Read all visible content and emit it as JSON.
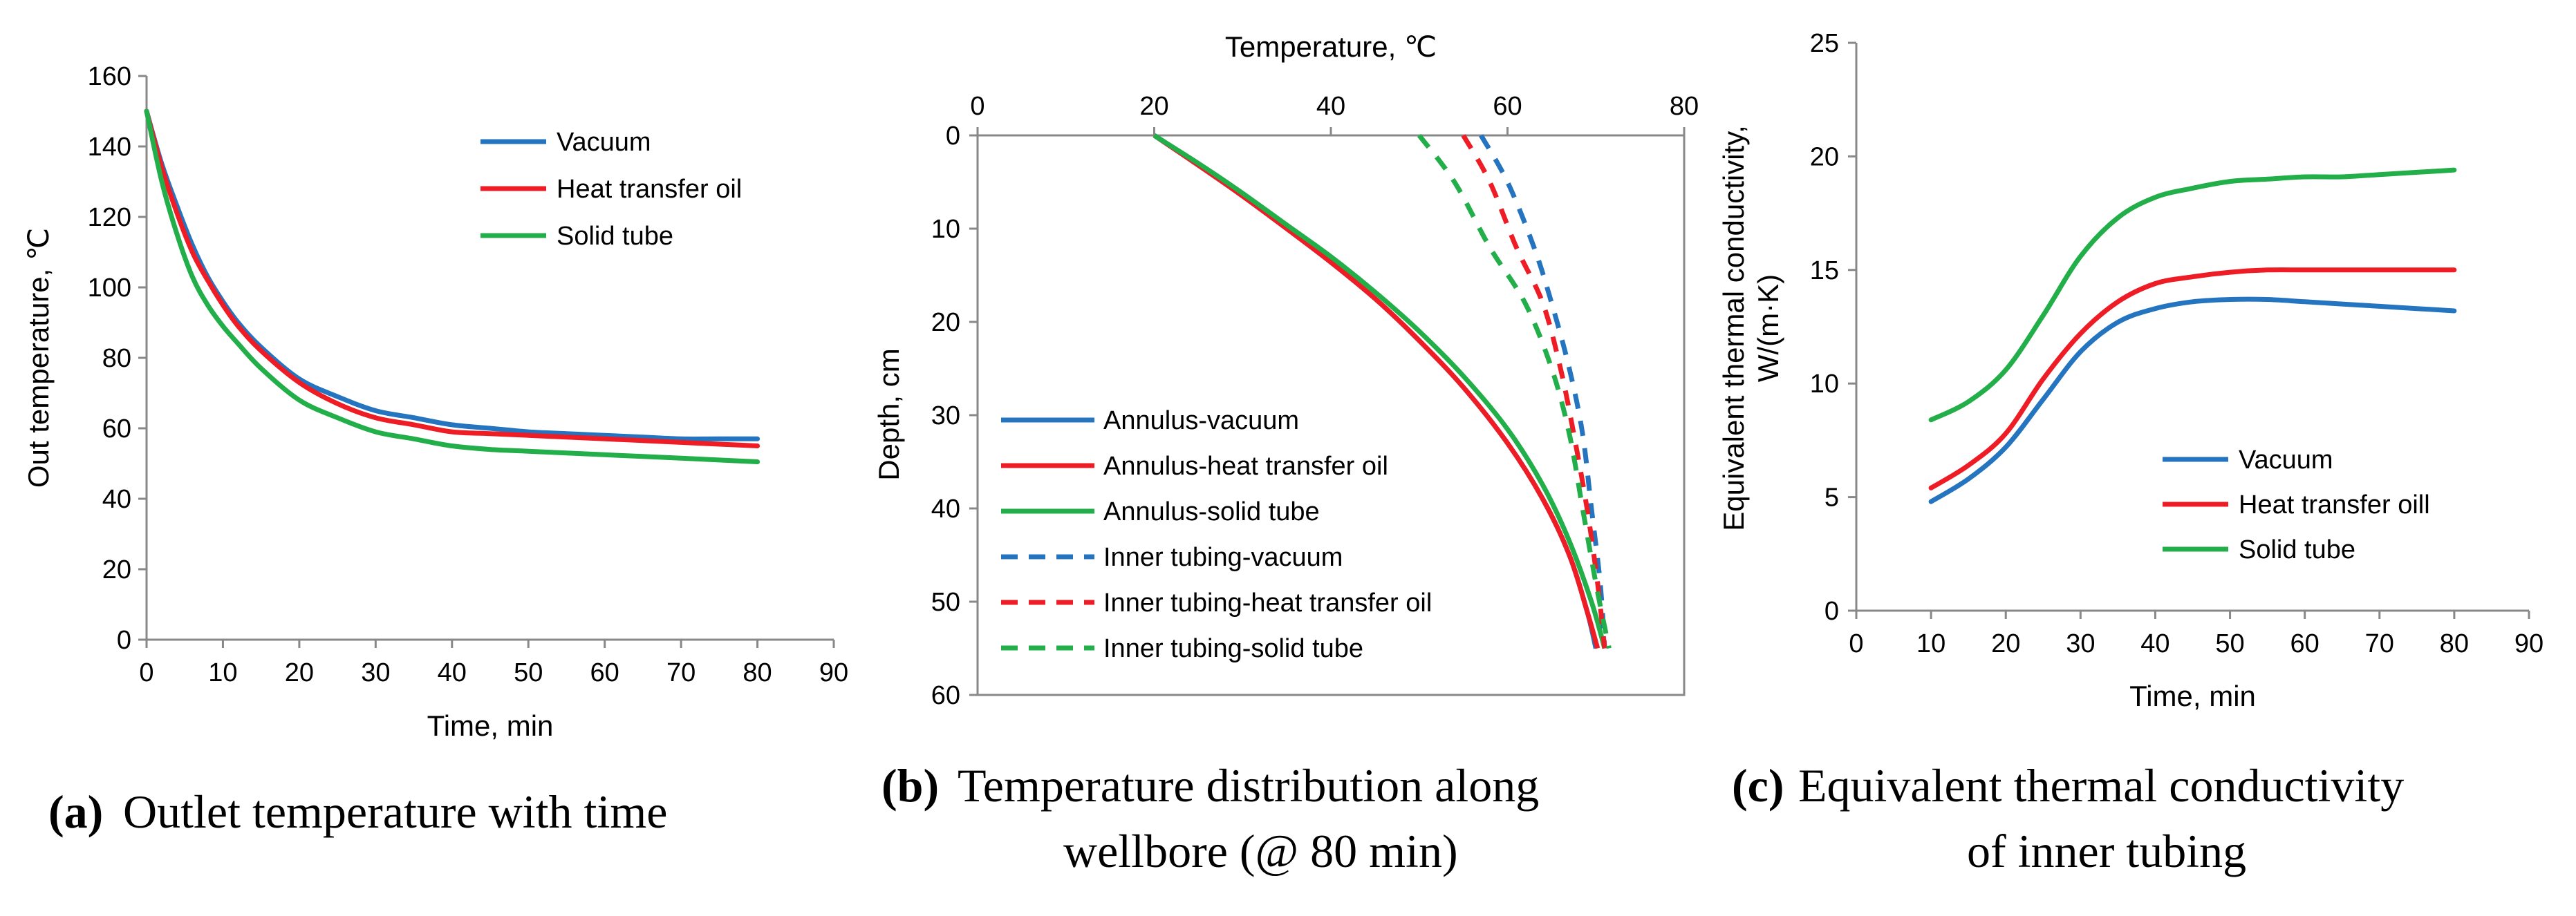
{
  "colors": {
    "vacuum": "#2474C0",
    "oil": "#EE1C25",
    "solid": "#22AE49"
  },
  "chart_data": [
    {
      "id": "a",
      "type": "line",
      "caption_letter": "a",
      "caption_text": "Outlet temperature with time",
      "title": "",
      "xlabel": "Time,  min",
      "ylabel": "Out temperature,  ℃",
      "xlim": [
        0,
        90
      ],
      "ylim": [
        0,
        160
      ],
      "xticks": [
        0,
        10,
        20,
        30,
        40,
        50,
        60,
        70,
        80,
        90
      ],
      "yticks": [
        0,
        20,
        40,
        60,
        80,
        100,
        120,
        140,
        160
      ],
      "grid": false,
      "legend_position": "top-right",
      "series": [
        {
          "name": "Vacuum",
          "color_key": "vacuum",
          "dash": false,
          "x": [
            0,
            2,
            4,
            6,
            8,
            10,
            12,
            15,
            20,
            25,
            30,
            35,
            40,
            45,
            50,
            55,
            60,
            65,
            70,
            75,
            80
          ],
          "y": [
            150,
            135,
            123,
            112,
            103,
            96,
            90,
            83,
            74,
            69,
            65,
            63,
            61,
            60,
            59,
            58.5,
            58,
            57.5,
            57,
            57,
            57
          ]
        },
        {
          "name": "Heat transfer oil",
          "color_key": "oil",
          "dash": false,
          "x": [
            0,
            2,
            4,
            6,
            8,
            10,
            12,
            15,
            20,
            25,
            30,
            35,
            40,
            45,
            50,
            55,
            60,
            65,
            70,
            75,
            80
          ],
          "y": [
            150,
            134,
            121,
            110,
            102,
            95,
            89,
            82,
            73,
            67,
            63,
            61,
            59,
            58.5,
            58,
            57.5,
            57,
            56.5,
            56,
            55.5,
            55
          ]
        },
        {
          "name": "Solid tube",
          "color_key": "solid",
          "dash": false,
          "x": [
            0,
            2,
            4,
            6,
            8,
            10,
            12,
            15,
            20,
            25,
            30,
            35,
            40,
            45,
            50,
            55,
            60,
            65,
            70,
            75,
            80
          ],
          "y": [
            150,
            130,
            115,
            103,
            95,
            89,
            84,
            77,
            68,
            63,
            59,
            57,
            55,
            54,
            53.5,
            53,
            52.5,
            52,
            51.5,
            51,
            50.5
          ]
        }
      ]
    },
    {
      "id": "b",
      "type": "line",
      "caption_letter": "b",
      "caption_text": "Temperature distribution along",
      "caption_text2": "wellbore (@ 80 min)",
      "title": "",
      "xlabel": "Temperature,  ℃",
      "ylabel": "Depth, cm",
      "xaxis_position": "top",
      "y_inverted": true,
      "xlim": [
        0,
        80
      ],
      "ylim": [
        0,
        60
      ],
      "xticks": [
        0,
        20,
        40,
        60,
        80
      ],
      "yticks": [
        0,
        10,
        20,
        30,
        40,
        50,
        60
      ],
      "grid": false,
      "legend_position": "bottom-left",
      "series": [
        {
          "name": "Annulus-vacuum",
          "color_key": "vacuum",
          "dash": false,
          "x": [
            20,
            25,
            30,
            35,
            40,
            45,
            50,
            55,
            60,
            64,
            67,
            69,
            70
          ],
          "y": [
            0,
            3.2,
            6.5,
            10,
            13.6,
            17.5,
            22,
            27,
            33,
            39,
            45,
            51,
            55
          ]
        },
        {
          "name": "Annulus-heat transfer oil",
          "color_key": "oil",
          "dash": false,
          "x": [
            20,
            25,
            30,
            35,
            40,
            45,
            50,
            55,
            60,
            64,
            67,
            69,
            70.2
          ],
          "y": [
            0,
            3.2,
            6.5,
            10,
            13.6,
            17.5,
            22,
            27,
            33,
            39,
            45,
            51,
            55
          ]
        },
        {
          "name": "Annulus-solid tube",
          "color_key": "solid",
          "dash": false,
          "x": [
            20,
            25,
            30,
            35,
            40,
            45,
            50,
            55,
            60,
            64,
            67,
            69.5,
            71
          ],
          "y": [
            0,
            3,
            6.2,
            9.6,
            13,
            16.8,
            21,
            25.8,
            31.5,
            37.5,
            43.5,
            50,
            55
          ]
        },
        {
          "name": "Inner tubing-vacuum",
          "color_key": "vacuum",
          "dash": true,
          "x": [
            57,
            60,
            63,
            65,
            67,
            68.5,
            69.5,
            70.5,
            71
          ],
          "y": [
            0,
            5,
            12,
            18,
            25,
            32,
            40,
            48,
            55
          ]
        },
        {
          "name": "Inner tubing-heat transfer oil",
          "color_key": "oil",
          "dash": true,
          "x": [
            55,
            58,
            61,
            64,
            66,
            67.5,
            69,
            70.2,
            71
          ],
          "y": [
            0,
            5,
            12,
            18,
            25,
            32,
            40,
            48,
            55
          ]
        },
        {
          "name": "Inner tubing-solid tube",
          "color_key": "solid",
          "dash": true,
          "x": [
            50,
            54,
            58,
            62,
            65,
            67,
            68.5,
            70,
            71.5
          ],
          "y": [
            0,
            5,
            12,
            18,
            25,
            32,
            40,
            48,
            55
          ]
        }
      ]
    },
    {
      "id": "c",
      "type": "line",
      "caption_letter": "c",
      "caption_text": "Equivalent thermal conductivity",
      "caption_text2": "of inner tubing",
      "title": "",
      "xlabel": "Time,  min",
      "ylabel": "Equivalent  thermal conductivity,",
      "ylabel2": "W/(m·K)",
      "xlim": [
        0,
        90
      ],
      "ylim": [
        0,
        25
      ],
      "xticks": [
        0,
        10,
        20,
        30,
        40,
        50,
        60,
        70,
        80,
        90
      ],
      "yticks": [
        0,
        5,
        10,
        15,
        20,
        25
      ],
      "grid": false,
      "legend_position": "bottom-right",
      "series": [
        {
          "name": "Vacuum",
          "color_key": "vacuum",
          "dash": false,
          "x": [
            10,
            15,
            20,
            25,
            30,
            35,
            40,
            45,
            50,
            55,
            60,
            65,
            70,
            75,
            80
          ],
          "y": [
            4.8,
            5.8,
            7.2,
            9.3,
            11.4,
            12.7,
            13.3,
            13.6,
            13.7,
            13.7,
            13.6,
            13.5,
            13.4,
            13.3,
            13.2
          ]
        },
        {
          "name": "Heat transfer oill",
          "color_key": "oil",
          "dash": false,
          "x": [
            10,
            15,
            20,
            25,
            30,
            35,
            40,
            45,
            50,
            55,
            60,
            65,
            70,
            75,
            80
          ],
          "y": [
            5.4,
            6.4,
            7.8,
            10.2,
            12.2,
            13.6,
            14.4,
            14.7,
            14.9,
            15.0,
            15.0,
            15.0,
            15.0,
            15.0,
            15.0
          ]
        },
        {
          "name": "Solid tube",
          "color_key": "solid",
          "dash": false,
          "x": [
            10,
            15,
            20,
            25,
            30,
            35,
            40,
            45,
            50,
            55,
            60,
            65,
            70,
            75,
            80
          ],
          "y": [
            8.4,
            9.2,
            10.6,
            13.0,
            15.6,
            17.3,
            18.2,
            18.6,
            18.9,
            19.0,
            19.1,
            19.1,
            19.2,
            19.3,
            19.4
          ]
        }
      ]
    }
  ]
}
